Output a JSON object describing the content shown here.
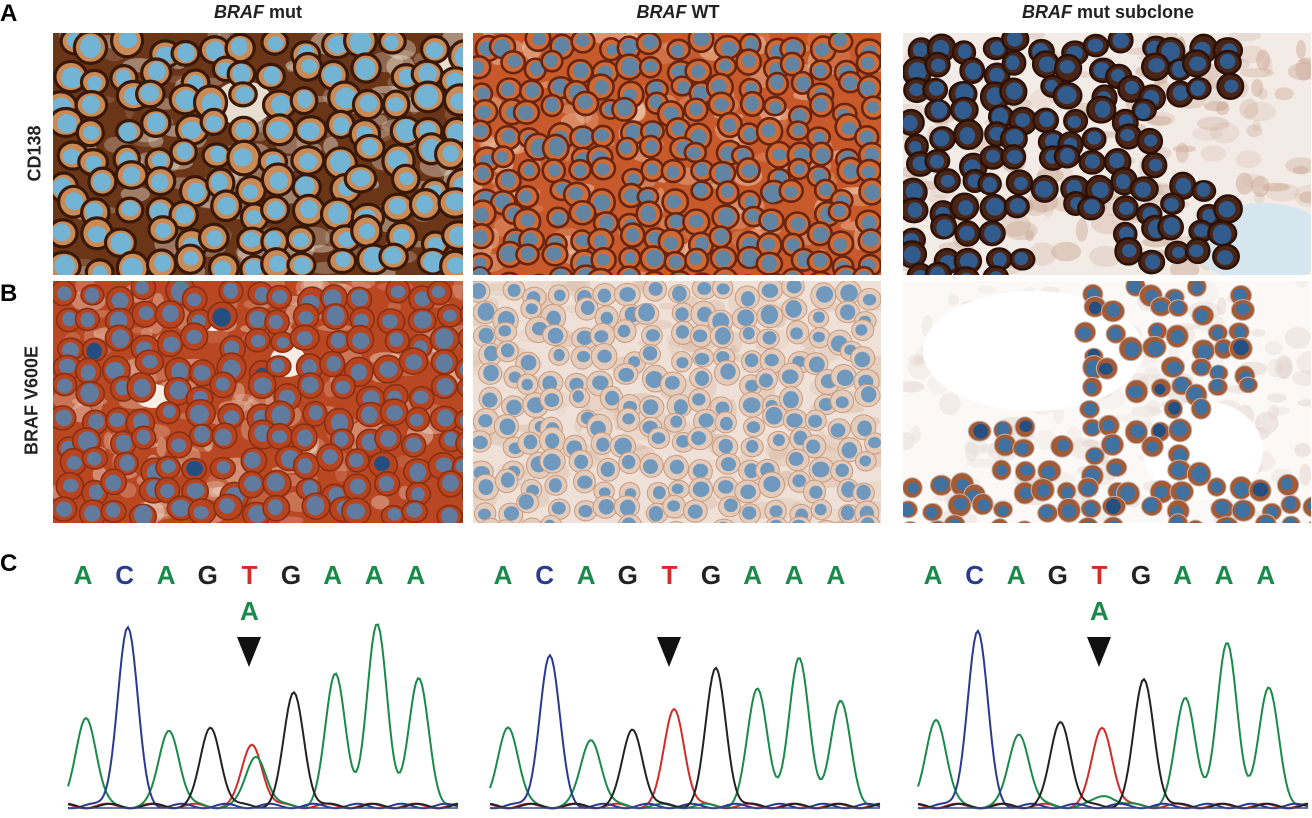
{
  "panels": {
    "a": "A",
    "b": "B",
    "c": "C"
  },
  "columns": [
    {
      "gene": "BRAF",
      "suffix": " mut"
    },
    {
      "gene": "BRAF",
      "suffix": " WT"
    },
    {
      "gene": "BRAF",
      "suffix": " mut subclone"
    }
  ],
  "rows": {
    "cd138": "CD138",
    "braf": "BRAF V600E"
  },
  "sequence": {
    "bases": [
      "A",
      "C",
      "A",
      "G",
      "T",
      "G",
      "A",
      "A",
      "A"
    ],
    "alt_base": "A",
    "alt_shown": [
      true,
      false,
      true
    ]
  },
  "colors": {
    "A": "#1a8a4a",
    "C": "#2a3a8f",
    "G": "#222222",
    "T": "#d42a2a",
    "cd138_membrane": "#4a1f0e",
    "cd138_background": "#c25a2a",
    "braf_mut_cytoplasm": "#b8431f",
    "nucleus": "#4a8fc2"
  }
}
